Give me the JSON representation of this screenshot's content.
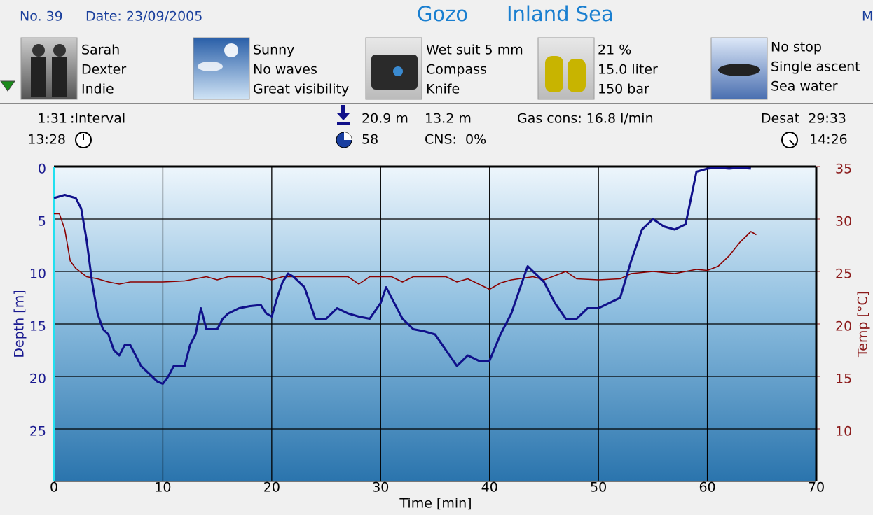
{
  "header": {
    "number": "No. 39",
    "date": "Date: 23/09/2005",
    "site": "Gozo",
    "location": "Inland Sea",
    "cut_text": "M"
  },
  "info_blocks": [
    {
      "lines": [
        "Sarah",
        "Dexter",
        "Indie"
      ]
    },
    {
      "lines": [
        "Sunny",
        "No waves",
        "Great visibility"
      ]
    },
    {
      "lines": [
        "Wet suit 5 mm",
        "Compass",
        "Knife"
      ]
    },
    {
      "lines": [
        "21 %",
        "15.0 liter",
        "150 bar"
      ]
    },
    {
      "lines": [
        "No stop",
        "Single ascent",
        "Sea water"
      ]
    }
  ],
  "stats": {
    "interval_time": "1:31",
    "interval_label": ":Interval",
    "start_time": "13:28",
    "max_depth": "20.9 m",
    "avg_depth": "13.2 m",
    "duration": "58",
    "cns": "CNS:  0%",
    "gas_cons": "Gas cons: 16.8 l/min",
    "desat": "Desat  29:33",
    "end_time": "14:26"
  },
  "chart_data": {
    "type": "line",
    "x_label": "Time [min]",
    "y_label": "Depth [m]",
    "y2_label": "Temp [°C]",
    "xlim": [
      0,
      70
    ],
    "xticks": [
      0,
      10,
      20,
      30,
      40,
      50,
      60,
      70
    ],
    "ylim": [
      30,
      0
    ],
    "yticks": [
      0,
      5,
      10,
      15,
      20,
      25
    ],
    "y2lim": [
      5,
      35
    ],
    "y2ticks": [
      10,
      15,
      20,
      25,
      30,
      35
    ],
    "grid": true,
    "series": [
      {
        "color": "#10108a",
        "x": [
          0,
          1,
          2,
          2.5,
          3,
          3.5,
          4,
          4.5,
          5,
          5.5,
          6,
          6.5,
          7,
          7.5,
          8,
          9,
          9.5,
          10,
          10.5,
          11,
          12,
          12.5,
          13,
          13.5,
          14,
          15,
          15.5,
          16,
          17,
          18,
          19,
          19.5,
          20,
          20.5,
          21,
          21.5,
          22,
          23,
          23.5,
          24,
          25,
          26,
          27,
          28,
          29,
          30,
          30.5,
          31,
          32,
          33,
          34,
          35,
          36,
          37,
          38,
          39,
          40,
          41,
          42,
          43,
          43.5,
          44,
          45,
          46,
          47,
          48,
          49,
          50,
          51,
          52,
          53,
          54,
          55,
          56,
          57,
          58,
          58.5,
          59,
          60,
          61,
          62,
          63,
          64
        ],
        "values": [
          3,
          2.7,
          3,
          4,
          7,
          11,
          14,
          15.5,
          16,
          17.5,
          18,
          17,
          17,
          18,
          19,
          20,
          20.5,
          20.7,
          20,
          19,
          19,
          17,
          16,
          13.5,
          15.5,
          15.5,
          14.5,
          14,
          13.5,
          13.3,
          13.2,
          14,
          14.3,
          12.5,
          11,
          10.2,
          10.5,
          11.5,
          13,
          14.5,
          14.5,
          13.5,
          14,
          14.3,
          14.5,
          13,
          11.5,
          12.5,
          14.5,
          15.5,
          15.7,
          16,
          17.5,
          19,
          18,
          18.5,
          18.5,
          16,
          14,
          11,
          9.5,
          10,
          11,
          13,
          14.5,
          14.5,
          13.5,
          13.5,
          13,
          12.5,
          9,
          6,
          5,
          5.7,
          6,
          5.5,
          3,
          0.5,
          0.2,
          0.1,
          0.2,
          0.1,
          0.2
        ]
      },
      {
        "color": "#8b0000",
        "axis": "y2",
        "x": [
          0,
          0.5,
          1,
          1.5,
          2,
          3,
          4,
          5,
          6,
          7,
          10,
          12,
          13,
          14,
          15,
          16,
          19,
          20,
          21,
          23,
          27,
          28,
          29,
          31,
          32,
          33,
          36,
          37,
          38,
          39,
          40,
          41,
          42,
          44,
          45,
          47,
          48,
          50,
          52,
          53,
          55,
          57,
          58,
          59,
          60,
          61,
          62,
          63,
          64,
          64.5
        ],
        "values": [
          30.5,
          30.5,
          29,
          26,
          25.3,
          24.5,
          24.3,
          24,
          23.8,
          24,
          24,
          24.1,
          24.3,
          24.5,
          24.2,
          24.5,
          24.5,
          24.2,
          24.5,
          24.5,
          24.5,
          23.8,
          24.5,
          24.5,
          24,
          24.5,
          24.5,
          24,
          24.3,
          23.8,
          23.3,
          23.9,
          24.2,
          24.5,
          24.2,
          25,
          24.3,
          24.2,
          24.3,
          24.8,
          25,
          24.8,
          25,
          25.2,
          25.1,
          25.5,
          26.5,
          27.8,
          28.8,
          28.5
        ]
      }
    ]
  }
}
